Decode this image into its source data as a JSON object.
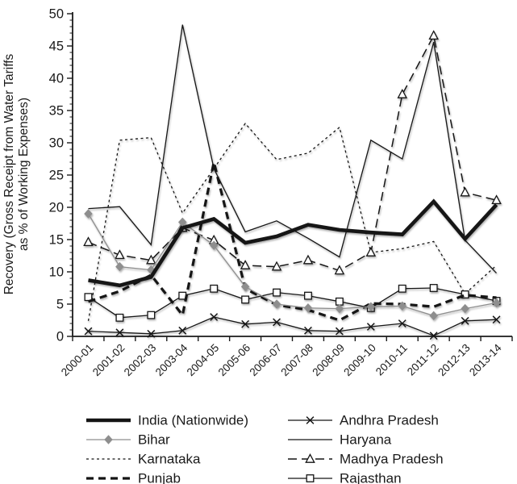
{
  "y_axis": {
    "title_line1": "Recovery (Gross Receipt from Water Tariffs",
    "title_line2": "as % of Working Expenses)",
    "min": 0,
    "max": 50,
    "major_step": 5,
    "minor_step": 1
  },
  "chart_data": {
    "type": "line",
    "title": "",
    "xlabel": "",
    "ylabel": "Recovery (Gross Receipt from Water Tariffs as % of Working Expenses)",
    "ylim": [
      0,
      50
    ],
    "grid": false,
    "legend_position": "bottom",
    "categories": [
      "2000-01",
      "2001-02",
      "2002-03",
      "2003-04",
      "2004-05",
      "2005-06",
      "2006-07",
      "2007-08",
      "2008-09",
      "2009-10",
      "2010-11",
      "2011-12",
      "2012-13",
      "2013-14"
    ],
    "series": [
      {
        "id": "india",
        "name": "India (Nationwide)",
        "line": "solid",
        "width": 4.6,
        "color": "#141414",
        "marker": "none",
        "values": [
          8.7,
          7.9,
          9.2,
          16.8,
          18.2,
          14.5,
          15.5,
          17.3,
          16.5,
          16.1,
          15.8,
          20.9,
          15.1,
          20.4
        ]
      },
      {
        "id": "bihar",
        "name": "Bihar",
        "line": "solid",
        "width": 1.3,
        "color": "#8e8e8e",
        "marker": "diamond",
        "values": [
          19.0,
          10.8,
          10.3,
          17.7,
          14.1,
          7.7,
          5.0,
          4.4,
          4.3,
          4.6,
          4.7,
          3.2,
          4.3,
          5.2
        ]
      },
      {
        "id": "karnataka",
        "name": "Karnataka",
        "line": "dot",
        "width": 1.3,
        "color": "#141414",
        "marker": "none",
        "values": [
          2.4,
          30.4,
          30.8,
          19.1,
          26.0,
          33.0,
          27.4,
          28.4,
          32.4,
          13.0,
          13.6,
          14.7,
          6.6,
          11.0
        ]
      },
      {
        "id": "punjab",
        "name": "Punjab",
        "line": "heavydash",
        "width": 3.2,
        "color": "#141414",
        "marker": "none",
        "values": [
          5.4,
          7.0,
          9.5,
          3.3,
          27.0,
          7.4,
          4.9,
          4.1,
          2.5,
          5.1,
          5.0,
          4.6,
          6.4,
          6.0
        ]
      },
      {
        "id": "andhra-pradesh",
        "name": "Andhra Pradesh",
        "line": "solid",
        "width": 1.3,
        "color": "#141414",
        "marker": "x",
        "values": [
          0.8,
          0.6,
          0.4,
          0.9,
          3.0,
          1.9,
          2.2,
          0.9,
          0.8,
          1.5,
          2.0,
          0.1,
          2.4,
          2.6
        ]
      },
      {
        "id": "haryana",
        "name": "Haryana",
        "line": "solid",
        "width": 1.3,
        "color": "#141414",
        "marker": "none",
        "values": [
          19.8,
          20.1,
          14.2,
          48.3,
          26.0,
          16.2,
          17.9,
          15.2,
          12.3,
          30.4,
          27.5,
          45.6,
          14.9,
          9.8
        ]
      },
      {
        "id": "madhya-pradesh",
        "name": "Madhya Pradesh",
        "line": "longdash",
        "width": 1.5,
        "color": "#141414",
        "marker": "triangle",
        "values": [
          14.6,
          12.6,
          11.8,
          16.8,
          14.9,
          11.0,
          10.8,
          11.8,
          10.2,
          13.0,
          37.5,
          46.6,
          22.3,
          21.1
        ]
      },
      {
        "id": "rajasthan",
        "name": "Rajasthan",
        "line": "solid",
        "width": 1.3,
        "color": "#141414",
        "marker": "square",
        "values": [
          6.1,
          2.9,
          3.3,
          6.3,
          7.4,
          5.7,
          6.8,
          6.3,
          5.4,
          4.4,
          7.4,
          7.5,
          6.5,
          5.5
        ]
      }
    ],
    "legend": {
      "columns": 2,
      "left_column": [
        "india",
        "bihar",
        "karnataka",
        "punjab"
      ],
      "right_column": [
        "andhra-pradesh",
        "haryana",
        "madhya-pradesh",
        "rajasthan"
      ]
    }
  },
  "colors": {
    "axis": "#1a1a1a",
    "text": "#1a1a1a",
    "bihar_gray": "#8e8e8e",
    "background": "#ffffff"
  }
}
